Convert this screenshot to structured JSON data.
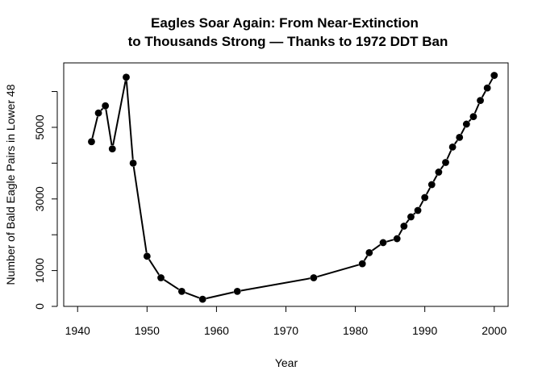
{
  "chart_data": {
    "type": "line",
    "title_lines": [
      "Eagles Soar Again: From Near-Extinction",
      "to Thousands Strong — Thanks to 1972 DDT Ban"
    ],
    "xlabel": "Year",
    "ylabel": "Number of Bald Eagle Pairs in Lower 48",
    "xlim": [
      1938,
      2002
    ],
    "ylim": [
      0,
      6800
    ],
    "x_ticks": [
      "1940",
      "1950",
      "1960",
      "1970",
      "1980",
      "1990",
      "2000"
    ],
    "y_ticks_labeled": [
      "0",
      "1000",
      "3000",
      "5000"
    ],
    "y_tick_values": [
      0,
      1000,
      2000,
      3000,
      4000,
      5000,
      6000
    ],
    "grid": false,
    "legend": "none",
    "colors": {
      "line": "#000000",
      "points": "#000000",
      "background": "#ffffff"
    },
    "series": [
      {
        "x": [
          1942,
          1943,
          1944,
          1945,
          1947,
          1948,
          1950,
          1952,
          1955,
          1958,
          1963,
          1974,
          1981,
          1982,
          1984,
          1986,
          1987,
          1988,
          1989,
          1990,
          1991,
          1992,
          1993,
          1994,
          1995,
          1996,
          1997,
          1998,
          1999,
          2000
        ],
        "y": [
          4600,
          5400,
          5600,
          4400,
          6400,
          4000,
          1400,
          800,
          420,
          200,
          420,
          800,
          1190,
          1500,
          1780,
          1890,
          2240,
          2500,
          2680,
          3040,
          3400,
          3750,
          4020,
          4450,
          4720,
          5090,
          5300,
          5750,
          6100,
          6450
        ]
      }
    ]
  }
}
